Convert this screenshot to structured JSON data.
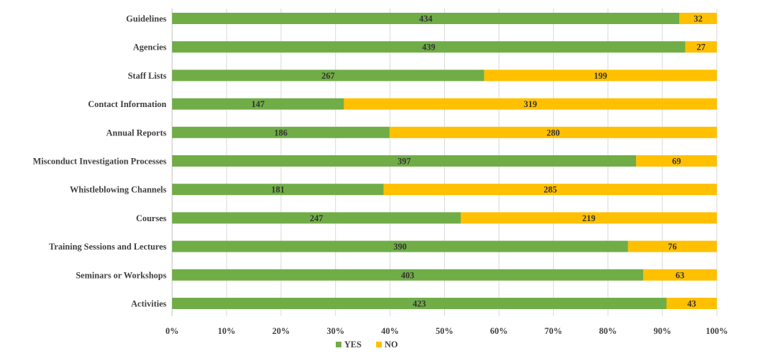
{
  "colors": {
    "yes": "#70ad47",
    "no": "#ffc000",
    "grid": "#d9d9d9"
  },
  "chart_data": {
    "type": "bar",
    "orientation": "horizontal",
    "stacked": "100%",
    "categories": [
      "Guidelines",
      "Agencies",
      "Staff Lists",
      "Contact Information",
      "Annual Reports",
      "Misconduct Investigation Processes",
      "Whistleblowing Channels",
      "Courses",
      "Training Sessions and Lectures",
      "Seminars or Workshops",
      "Activities"
    ],
    "series": [
      {
        "name": "YES",
        "values": [
          434,
          439,
          267,
          147,
          186,
          397,
          181,
          247,
          390,
          403,
          423
        ]
      },
      {
        "name": "NO",
        "values": [
          32,
          27,
          199,
          319,
          280,
          69,
          285,
          219,
          76,
          63,
          43
        ]
      }
    ],
    "xticks": [
      "0%",
      "10%",
      "20%",
      "30%",
      "40%",
      "50%",
      "60%",
      "70%",
      "80%",
      "90%",
      "100%"
    ],
    "xlim": [
      0,
      100
    ],
    "grid": true,
    "legend": "bottom-center",
    "title": "",
    "xlabel": "",
    "ylabel": ""
  }
}
